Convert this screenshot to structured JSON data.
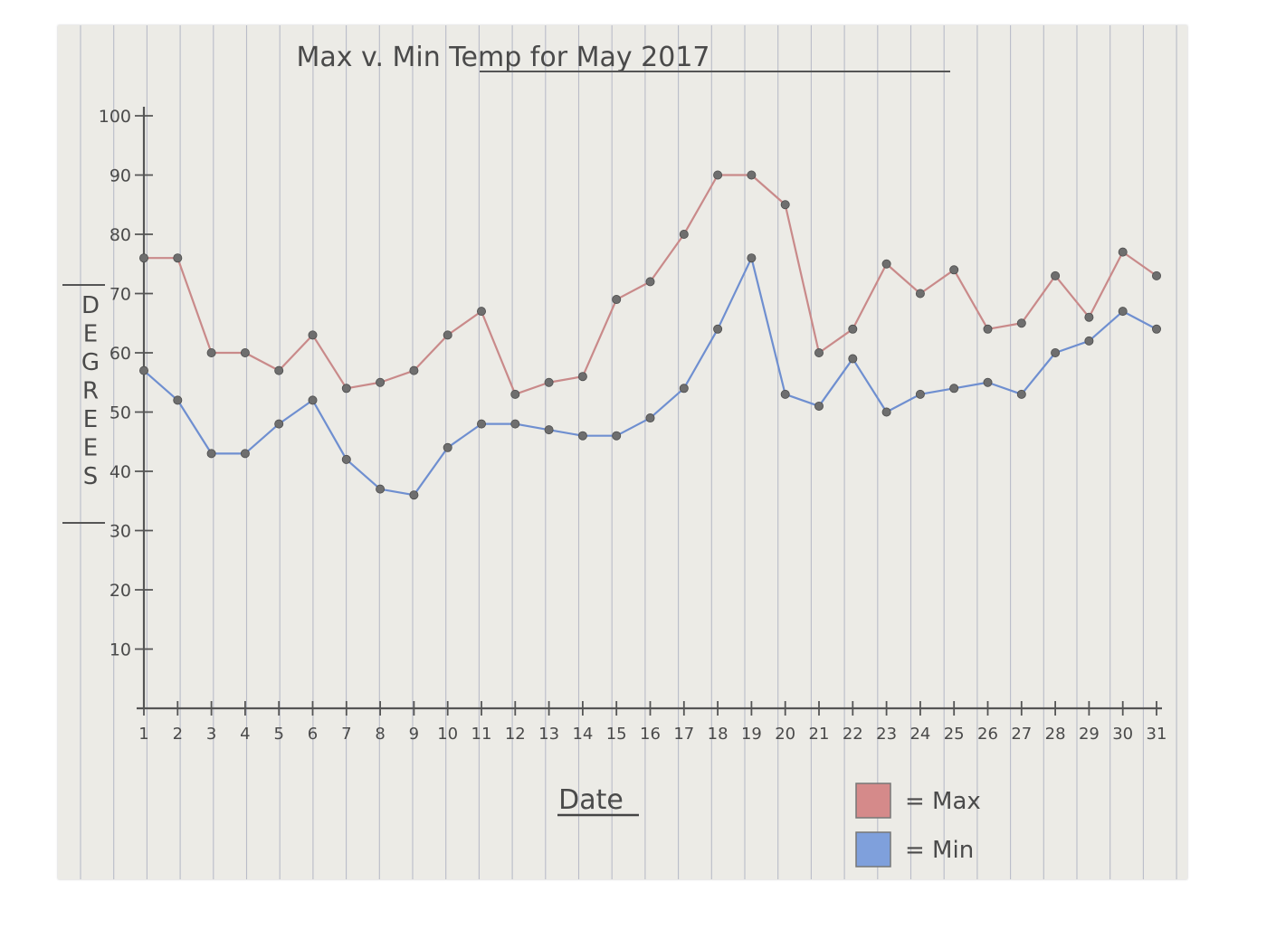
{
  "chart_data": {
    "type": "line",
    "title": "Max v. Min Temp for May 2017",
    "xlabel": "Date",
    "ylabel": "DEGREES",
    "x": [
      1,
      2,
      3,
      4,
      5,
      6,
      7,
      8,
      9,
      10,
      11,
      12,
      13,
      14,
      15,
      16,
      17,
      18,
      19,
      20,
      21,
      22,
      23,
      24,
      25,
      26,
      27,
      28,
      29,
      30,
      31
    ],
    "x_tick_labels": [
      "1",
      "2",
      "3",
      "4",
      "5",
      "6",
      "7",
      "8",
      "9",
      "10",
      "11",
      "12",
      "13",
      "14",
      "15",
      "16",
      "17",
      "18",
      "19",
      "20",
      "21",
      "22",
      "23",
      "24",
      "25",
      "26",
      "27",
      "28",
      "29",
      "30",
      "31"
    ],
    "y_ticks": [
      10,
      20,
      30,
      40,
      50,
      60,
      70,
      80,
      90,
      100
    ],
    "y_tick_labels": [
      "10",
      "20",
      "30",
      "40",
      "50",
      "60",
      "70",
      "80",
      "90",
      "100"
    ],
    "ylim": [
      0,
      100
    ],
    "grid": false,
    "legend_position": "bottom-right",
    "series": [
      {
        "name": "Max",
        "color": "#c98a8a",
        "values": [
          76,
          76,
          60,
          60,
          57,
          63,
          54,
          55,
          57,
          63,
          67,
          53,
          55,
          56,
          69,
          72,
          80,
          90,
          90,
          85,
          60,
          64,
          75,
          70,
          74,
          64,
          65,
          73,
          66,
          77,
          73
        ]
      },
      {
        "name": "Min",
        "color": "#6f8fd0",
        "values": [
          57,
          52,
          43,
          43,
          48,
          52,
          42,
          37,
          36,
          44,
          48,
          48,
          47,
          46,
          46,
          49,
          54,
          64,
          76,
          53,
          51,
          59,
          50,
          53,
          54,
          55,
          53,
          60,
          62,
          67,
          64
        ]
      }
    ],
    "legend": [
      {
        "label": "= Max",
        "color": "#d58a8a"
      },
      {
        "label": "= Min",
        "color": "#7fa0dc"
      }
    ]
  }
}
